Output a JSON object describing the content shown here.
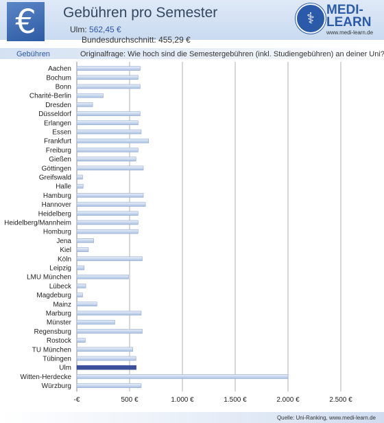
{
  "header": {
    "title": "Gebühren pro Semester",
    "ulm_label": "Ulm:",
    "ulm_value": "562,45 €",
    "national_label": "Bundesdurchschnitt:",
    "national_value": "455,29 €"
  },
  "logo": {
    "line1": "MEDI-",
    "line2": "LEARN",
    "url": "www.medi-learn.de",
    "icon": "caduceus-icon"
  },
  "euro_icon": {
    "name": "euro-icon",
    "glyph": "€"
  },
  "band": {
    "label": "Gebühren",
    "question": "Originalfrage: Wie hoch sind die Semestergebühren (inkl. Studiengebühren) an deiner Uni?"
  },
  "footer": {
    "source": "Quelle: Uni-Ranking, www.medi-learn.de"
  },
  "colors": {
    "bar": "#c9d8ee",
    "bar_edge": "#8fa8cf",
    "highlight": "#3b4f9a",
    "grid": "#b0b0b0"
  },
  "chart_data": {
    "type": "bar",
    "orientation": "horizontal",
    "categories": [
      "Aachen",
      "Bochum",
      "Bonn",
      "Charité-Berlin",
      "Dresden",
      "Düsseldorf",
      "Erlangen",
      "Essen",
      "Frankfurt",
      "Freiburg",
      "Gießen",
      "Göttingen",
      "Greifswald",
      "Halle",
      "Hamburg",
      "Hannover",
      "Heidelberg",
      "Heidelberg/Mannheim",
      "Homburg",
      "Jena",
      "Kiel",
      "Köln",
      "Leipzig",
      "LMU München",
      "Lübeck",
      "Magdeburg",
      "Mainz",
      "Marburg",
      "Münster",
      "Regensburg",
      "Rostock",
      "TU München",
      "Tübingen",
      "Ulm",
      "Witten-Herdecke",
      "Würzburg"
    ],
    "values": [
      600,
      580,
      600,
      250,
      150,
      600,
      580,
      610,
      680,
      580,
      560,
      630,
      55,
      60,
      630,
      650,
      580,
      580,
      580,
      160,
      110,
      620,
      70,
      490,
      85,
      55,
      190,
      610,
      360,
      620,
      80,
      530,
      560,
      562.45,
      2000,
      610
    ],
    "highlight": "Ulm",
    "xlim": [
      0,
      2500
    ],
    "ticks": [
      0,
      500,
      1000,
      1500,
      2000,
      2500
    ],
    "tick_labels": [
      "-€",
      "500 €",
      "1.000 €",
      "1.500 €",
      "2.000 €",
      "2.500 €"
    ],
    "grid": true
  }
}
